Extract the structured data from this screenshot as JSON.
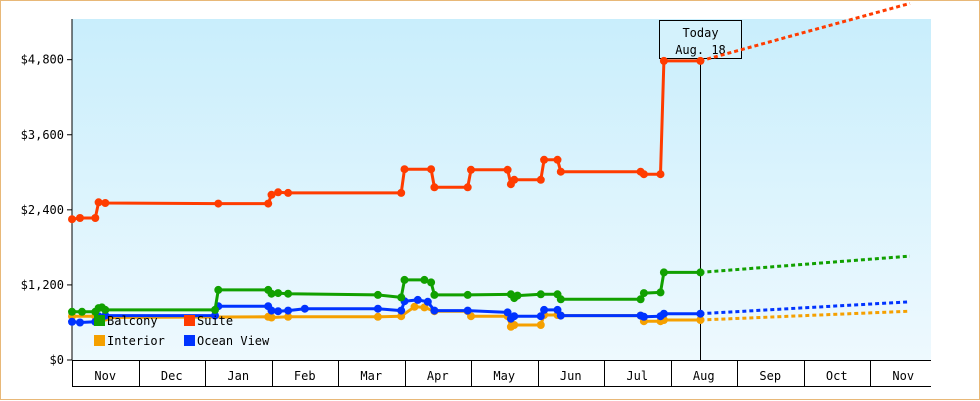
{
  "chart_data": {
    "type": "line",
    "title": "",
    "xlabel": "",
    "ylabel": "",
    "x_unit": "month (Nov 2023 = 0)",
    "xlim": [
      0,
      12.6
    ],
    "ylim": [
      0,
      5450
    ],
    "y_ticks": [
      0,
      1200,
      2400,
      3600,
      4800
    ],
    "y_tick_labels": [
      "$0",
      "$1,200",
      "$2,400",
      "$3,600",
      "$4,800"
    ],
    "x_tick_labels": [
      "Nov",
      "Dec",
      "Jan",
      "Feb",
      "Mar",
      "Apr",
      "May",
      "Jun",
      "Jul",
      "Aug",
      "Sep",
      "Oct",
      "Nov"
    ],
    "legend_position": "bottom-left",
    "today_marker": {
      "x": 9.45,
      "line1": "Today",
      "line2": "Aug. 18"
    },
    "series": [
      {
        "name": "Suite",
        "color": "#ff3c00",
        "points": [
          [
            0,
            2250
          ],
          [
            0.12,
            2270
          ],
          [
            0.35,
            2270
          ],
          [
            0.4,
            2520
          ],
          [
            0.5,
            2510
          ],
          [
            2.2,
            2500
          ],
          [
            2.95,
            2500
          ],
          [
            3.0,
            2640
          ],
          [
            3.1,
            2680
          ],
          [
            3.25,
            2670
          ],
          [
            4.95,
            2670
          ],
          [
            5.0,
            3050
          ],
          [
            5.4,
            3050
          ],
          [
            5.45,
            2760
          ],
          [
            5.95,
            2760
          ],
          [
            6.0,
            3040
          ],
          [
            6.55,
            3040
          ],
          [
            6.6,
            2810
          ],
          [
            6.65,
            2880
          ],
          [
            7.05,
            2880
          ],
          [
            7.1,
            3200
          ],
          [
            7.3,
            3200
          ],
          [
            7.35,
            3010
          ],
          [
            8.55,
            3010
          ],
          [
            8.6,
            2970
          ],
          [
            8.85,
            2970
          ],
          [
            8.9,
            4780
          ],
          [
            9.45,
            4780
          ]
        ],
        "projection": [
          [
            9.45,
            4780
          ],
          [
            12.6,
            5700
          ]
        ]
      },
      {
        "name": "Balcony",
        "color": "#11a000",
        "points": [
          [
            0,
            770
          ],
          [
            0.15,
            770
          ],
          [
            0.35,
            770
          ],
          [
            0.4,
            830
          ],
          [
            0.45,
            840
          ],
          [
            0.5,
            800
          ],
          [
            2.15,
            800
          ],
          [
            2.2,
            1120
          ],
          [
            2.95,
            1120
          ],
          [
            3.0,
            1060
          ],
          [
            3.1,
            1070
          ],
          [
            3.25,
            1060
          ],
          [
            4.6,
            1040
          ],
          [
            4.95,
            1000
          ],
          [
            5.0,
            1280
          ],
          [
            5.3,
            1280
          ],
          [
            5.4,
            1240
          ],
          [
            5.45,
            1040
          ],
          [
            5.95,
            1040
          ],
          [
            6.6,
            1050
          ],
          [
            6.65,
            990
          ],
          [
            6.7,
            1030
          ],
          [
            7.05,
            1050
          ],
          [
            7.3,
            1050
          ],
          [
            7.35,
            970
          ],
          [
            8.55,
            970
          ],
          [
            8.6,
            1070
          ],
          [
            8.85,
            1080
          ],
          [
            8.9,
            1400
          ],
          [
            9.45,
            1400
          ]
        ],
        "projection": [
          [
            9.45,
            1400
          ],
          [
            12.6,
            1660
          ]
        ]
      },
      {
        "name": "Interior",
        "color": "#f5a000",
        "points": [
          [
            0,
            700
          ],
          [
            0.35,
            700
          ],
          [
            0.5,
            680
          ],
          [
            2.95,
            690
          ],
          [
            3.0,
            680
          ],
          [
            3.25,
            690
          ],
          [
            4.6,
            690
          ],
          [
            4.95,
            700
          ],
          [
            5.15,
            850
          ],
          [
            5.3,
            840
          ],
          [
            5.45,
            780
          ],
          [
            5.95,
            780
          ],
          [
            6.0,
            700
          ],
          [
            6.55,
            700
          ],
          [
            6.6,
            530
          ],
          [
            6.65,
            560
          ],
          [
            7.05,
            560
          ],
          [
            7.1,
            720
          ],
          [
            7.3,
            720
          ],
          [
            7.35,
            710
          ],
          [
            8.55,
            710
          ],
          [
            8.6,
            620
          ],
          [
            8.85,
            620
          ],
          [
            8.9,
            640
          ],
          [
            9.45,
            640
          ]
        ],
        "projection": [
          [
            9.45,
            640
          ],
          [
            12.6,
            780
          ]
        ]
      },
      {
        "name": "Ocean View",
        "color": "#0033ff",
        "points": [
          [
            0,
            610
          ],
          [
            0.12,
            600
          ],
          [
            0.35,
            610
          ],
          [
            0.4,
            700
          ],
          [
            0.5,
            710
          ],
          [
            2.15,
            710
          ],
          [
            2.2,
            860
          ],
          [
            2.95,
            860
          ],
          [
            3.0,
            790
          ],
          [
            3.1,
            780
          ],
          [
            3.25,
            790
          ],
          [
            3.5,
            820
          ],
          [
            4.6,
            820
          ],
          [
            4.95,
            790
          ],
          [
            5.0,
            940
          ],
          [
            5.2,
            960
          ],
          [
            5.35,
            930
          ],
          [
            5.45,
            790
          ],
          [
            5.95,
            790
          ],
          [
            6.55,
            760
          ],
          [
            6.6,
            660
          ],
          [
            6.65,
            700
          ],
          [
            7.05,
            700
          ],
          [
            7.1,
            800
          ],
          [
            7.3,
            800
          ],
          [
            7.35,
            710
          ],
          [
            8.55,
            710
          ],
          [
            8.6,
            690
          ],
          [
            8.85,
            700
          ],
          [
            8.9,
            740
          ],
          [
            9.45,
            740
          ]
        ],
        "projection": [
          [
            9.45,
            740
          ],
          [
            12.6,
            930
          ]
        ]
      }
    ]
  }
}
